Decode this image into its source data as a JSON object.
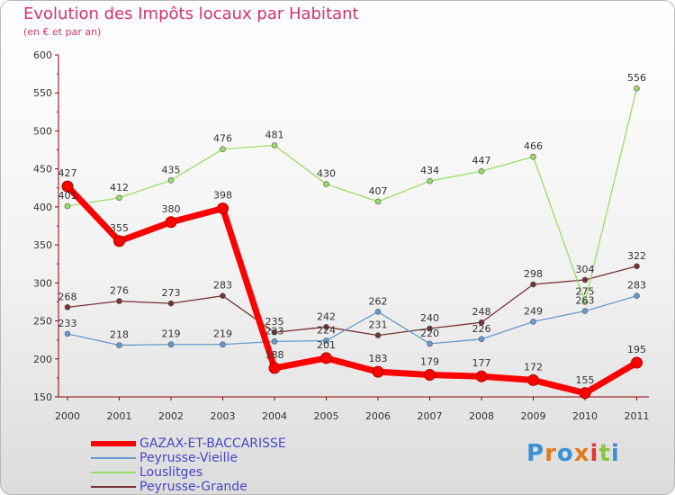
{
  "title": "Evolution des Impôts locaux par Habitant",
  "subtitle": "(en € et par an)",
  "logo": "Proxiti",
  "chart_data": {
    "type": "line",
    "title": "Evolution des Impôts locaux par Habitant",
    "subtitle": "(en € et par an)",
    "xlabel": "",
    "ylabel": "",
    "x": [
      "2000",
      "2001",
      "2002",
      "2003",
      "2004",
      "2005",
      "2006",
      "2007",
      "2008",
      "2009",
      "2010",
      "2011"
    ],
    "ylim": [
      150,
      600
    ],
    "yticks": [
      150,
      200,
      250,
      300,
      350,
      400,
      450,
      500,
      550,
      600
    ],
    "grid": false,
    "legend_position": "bottom-left",
    "series": [
      {
        "name": "GAZAX-ET-BACCARISSE",
        "color": "#ff0000",
        "values": [
          427,
          355,
          380,
          398,
          188,
          201,
          183,
          179,
          177,
          172,
          155,
          195
        ]
      },
      {
        "name": "Peyrusse-Vieille",
        "color": "#6699cc",
        "values": [
          233,
          218,
          219,
          219,
          223,
          224,
          262,
          220,
          226,
          249,
          263,
          283
        ]
      },
      {
        "name": "Louslitges",
        "color": "#99dd66",
        "values": [
          401,
          412,
          435,
          476,
          481,
          430,
          407,
          434,
          447,
          466,
          275,
          556
        ]
      },
      {
        "name": "Peyrusse-Grande",
        "color": "#773333",
        "values": [
          268,
          276,
          273,
          283,
          235,
          242,
          231,
          240,
          248,
          298,
          304,
          322
        ]
      }
    ],
    "point_labels": [
      [
        "427",
        "355",
        "380",
        "398",
        "188",
        "201",
        "183",
        "179",
        "177",
        "172",
        "155",
        "195"
      ],
      [
        "233",
        "218",
        "219",
        "219",
        "223",
        "224",
        "262",
        "220",
        "226",
        "249",
        "263",
        "283"
      ],
      [
        "401",
        "412",
        "435",
        "476",
        "481",
        "430",
        "407",
        "434",
        "447",
        "466",
        "275",
        "556"
      ],
      [
        "268",
        "276",
        "273",
        "283",
        "235",
        "242",
        "231",
        "240",
        "248",
        "298",
        "304",
        "322"
      ]
    ]
  }
}
